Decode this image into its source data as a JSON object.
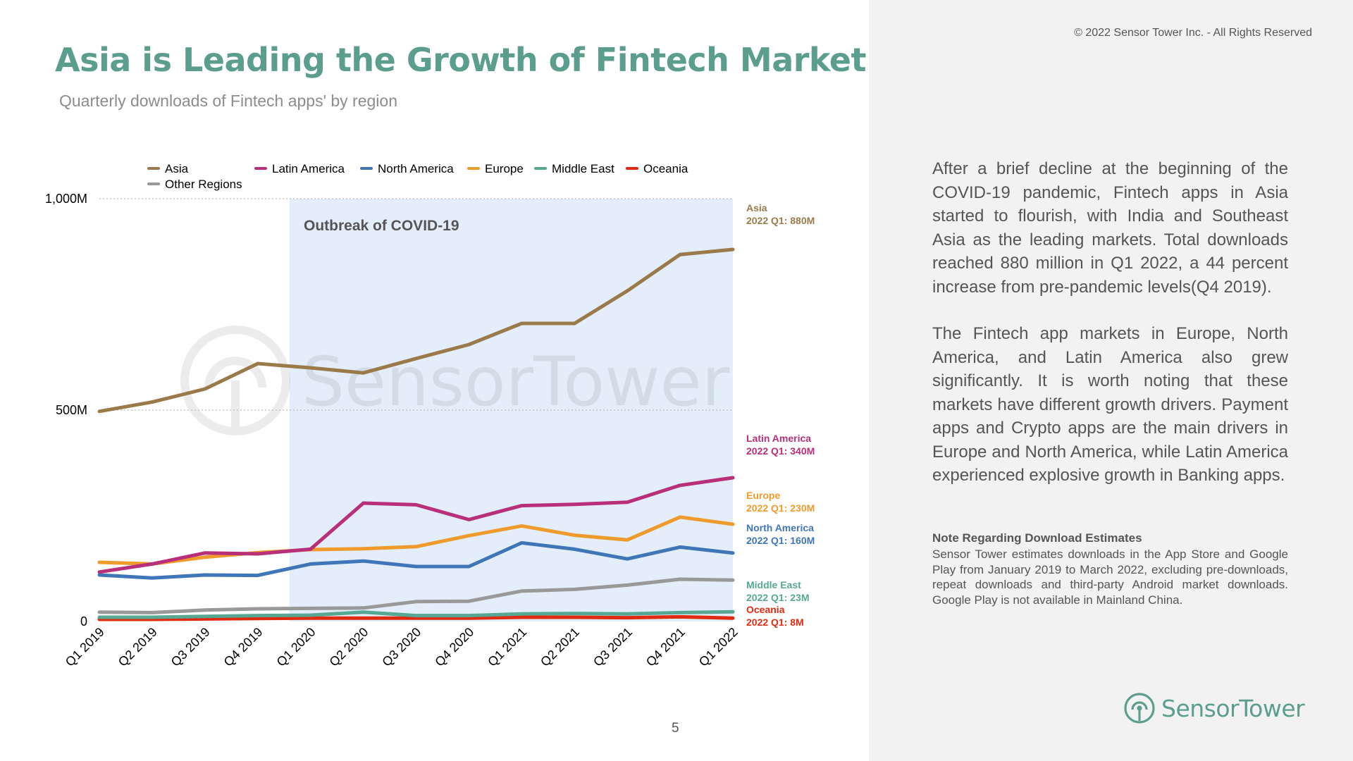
{
  "header": {
    "title": "Asia is Leading the Growth of Fintech Market",
    "subtitle": "Quarterly downloads of Fintech apps' by region",
    "copyright": "© 2022 Sensor Tower Inc. - All Rights Reserved",
    "page_number": "5"
  },
  "colors": {
    "accent": "#5c9e8e",
    "covid_shade": "#e3eefa",
    "asia": "#9b7a4a",
    "latin_america": "#b8307a",
    "north_america": "#3f76b8",
    "europe": "#ee9b2c",
    "middle_east": "#56a892",
    "oceania": "#e02a12",
    "other_regions": "#999999"
  },
  "watermark": "SensorTower",
  "chart_data": {
    "type": "line",
    "title": "Quarterly downloads of Fintech apps' by region",
    "categories": [
      "Q1 2019",
      "Q2 2019",
      "Q3 2019",
      "Q4 2019",
      "Q1 2020",
      "Q2 2020",
      "Q3 2020",
      "Q4 2020",
      "Q1 2021",
      "Q2 2021",
      "Q3 2021",
      "Q4 2021",
      "Q1 2022"
    ],
    "ylim": [
      0,
      1000
    ],
    "yticks": [
      {
        "value": 0,
        "label": "0"
      },
      {
        "value": 500,
        "label": "500M"
      },
      {
        "value": 1000,
        "label": "1,000M"
      }
    ],
    "grid": "dotted at 500M and 1,000M",
    "xlabel": "",
    "ylabel": "",
    "shaded_region": {
      "label": "Outbreak of COVID-19",
      "from_index": 3.6,
      "to_index": 12
    },
    "legend": [
      {
        "name": "Asia",
        "color_key": "asia"
      },
      {
        "name": "Latin America",
        "color_key": "latin_america"
      },
      {
        "name": "North America",
        "color_key": "north_america"
      },
      {
        "name": "Europe",
        "color_key": "europe"
      },
      {
        "name": "Middle East",
        "color_key": "middle_east"
      },
      {
        "name": "Oceania",
        "color_key": "oceania"
      },
      {
        "name": "Other Regions",
        "color_key": "other_regions"
      }
    ],
    "series": [
      {
        "name": "Asia",
        "color_key": "asia",
        "values": [
          497,
          519,
          550,
          610,
          600,
          588,
          622,
          655,
          705,
          705,
          782,
          868,
          880
        ]
      },
      {
        "name": "Latin America",
        "color_key": "latin_america",
        "values": [
          117,
          136,
          162,
          160,
          171,
          280,
          276,
          241,
          274,
          277,
          282,
          322,
          340
        ]
      },
      {
        "name": "Europe",
        "color_key": "europe",
        "values": [
          140,
          136,
          152,
          163,
          170,
          172,
          177,
          203,
          226,
          204,
          193,
          247,
          230
        ]
      },
      {
        "name": "North America",
        "color_key": "north_america",
        "values": [
          110,
          103,
          110,
          109,
          136,
          143,
          130,
          130,
          186,
          171,
          148,
          176,
          162
        ]
      },
      {
        "name": "Other Regions",
        "color_key": "other_regions",
        "values": [
          22,
          21,
          27,
          30,
          31,
          32,
          47,
          48,
          72,
          76,
          86,
          100,
          98
        ]
      },
      {
        "name": "Middle East",
        "color_key": "middle_east",
        "values": [
          10,
          10,
          12,
          14,
          15,
          22,
          14,
          14,
          18,
          19,
          18,
          21,
          23
        ]
      },
      {
        "name": "Oceania",
        "color_key": "oceania",
        "values": [
          5,
          5,
          6,
          7,
          8,
          8,
          8,
          8,
          10,
          10,
          9,
          11,
          8
        ]
      }
    ],
    "annotations": [
      {
        "region": "Asia",
        "text": "2022 Q1: 880M",
        "color_key": "asia"
      },
      {
        "region": "Latin America",
        "text": "2022 Q1: 340M",
        "color_key": "latin_america"
      },
      {
        "region": "Europe",
        "text": "2022 Q1: 230M",
        "color_key": "europe"
      },
      {
        "region": "North America",
        "text": "2022 Q1: 160M",
        "color_key": "north_america"
      },
      {
        "region": "Middle East",
        "text": "2022 Q1: 23M",
        "color_key": "middle_east"
      },
      {
        "region": "Oceania",
        "text": "2022 Q1: 8M",
        "color_key": "oceania"
      }
    ]
  },
  "sidebar": {
    "paragraph1": "After a brief decline at the beginning of the COVID-19 pandemic, Fintech apps in Asia started to flourish, with India and Southeast Asia as the leading markets. Total downloads reached 880 million in Q1 2022, a 44 percent increase from pre-pandemic levels(Q4 2019).",
    "paragraph2": "The Fintech app markets in Europe, North America, and Latin America also grew significantly. It is worth noting that these markets have different growth drivers. Payment apps and Crypto apps are the main drivers in Europe and North America, while Latin America experienced explosive growth in Banking apps.",
    "note_title": "Note Regarding Download Estimates",
    "note_body": "Sensor Tower estimates downloads in the App Store and Google Play from January 2019 to March 2022, excluding pre-downloads, repeat downloads and third-party Android market downloads. Google Play is not available in Mainland China.",
    "brand_name": "SensorTower"
  }
}
